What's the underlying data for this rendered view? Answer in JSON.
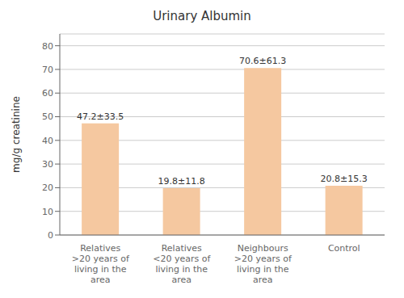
{
  "chart_data": {
    "type": "bar",
    "title": "Urinary Albumin",
    "ylabel": "mg/g creatinine",
    "categories": [
      "Relatives\n>20 years of\nliving in the\narea",
      "Relatives\n<20 years of\nliving in the\narea",
      "Neighbours\n>20 years of\nliving in the\narea",
      "Control"
    ],
    "values": [
      47.2,
      19.8,
      70.6,
      20.8
    ],
    "value_labels": [
      "47.2±33.5",
      "19.8±11.8",
      "70.6±61.3",
      "20.8±15.3"
    ],
    "color": "#F5C8A0",
    "ylim": [
      0,
      85
    ],
    "yticks": [
      0,
      10,
      20,
      30,
      40,
      50,
      60,
      70,
      80
    ],
    "grid": true
  }
}
